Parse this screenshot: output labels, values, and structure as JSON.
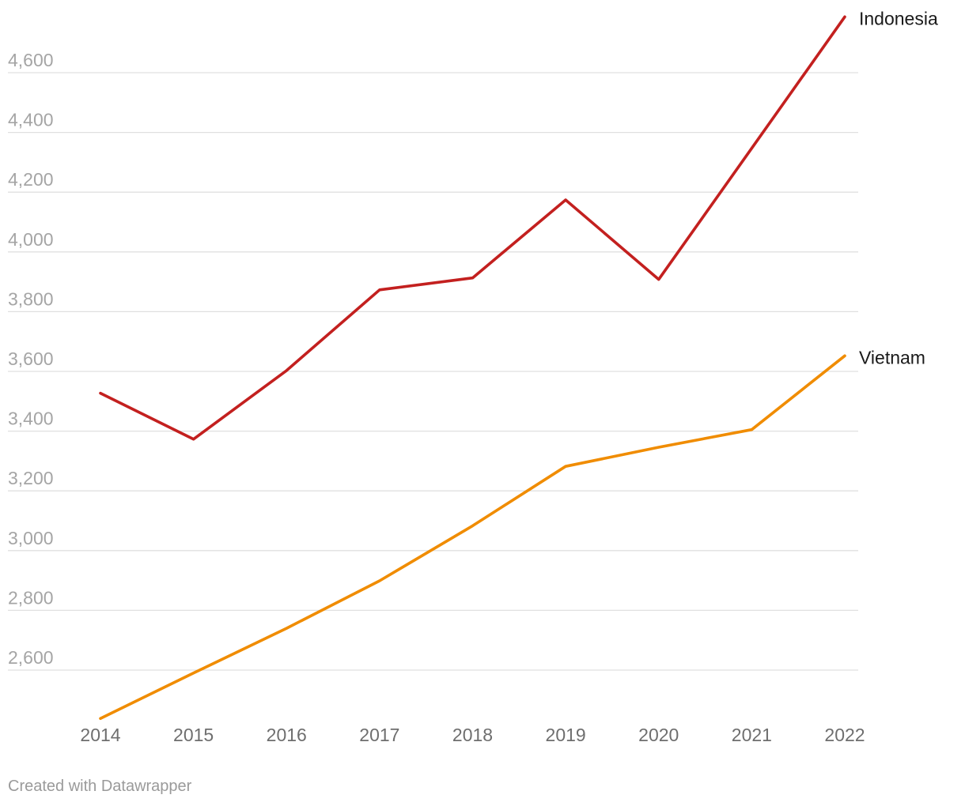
{
  "chart_data": {
    "type": "line",
    "x": [
      "2014",
      "2015",
      "2016",
      "2017",
      "2018",
      "2019",
      "2020",
      "2021",
      "2022"
    ],
    "series": [
      {
        "name": "Indonesia",
        "color": "#c3201f",
        "values": [
          3527,
          3373,
          3603,
          3873,
          3913,
          4174,
          3908,
          4347,
          4787
        ]
      },
      {
        "name": "Vietnam",
        "color": "#f08c00",
        "values": [
          2438,
          2590,
          2740,
          2899,
          3083,
          3282,
          3346,
          3405,
          3652
        ]
      }
    ],
    "y_ticks": [
      "2,600",
      "2,800",
      "3,000",
      "3,200",
      "3,400",
      "3,600",
      "3,800",
      "4,000",
      "4,200",
      "4,400",
      "4,600"
    ],
    "y_tick_values": [
      2600,
      2800,
      3000,
      3200,
      3400,
      3600,
      3800,
      4000,
      4200,
      4400,
      4600
    ],
    "ylim": [
      2438,
      4787
    ],
    "grid": true,
    "legend": "direct labels at line ends",
    "title": "",
    "xlabel": "",
    "ylabel": ""
  },
  "footer": {
    "credit": "Created with Datawrapper"
  }
}
